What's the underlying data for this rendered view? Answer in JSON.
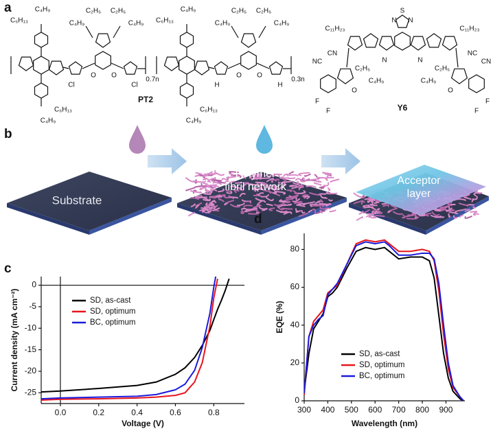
{
  "panel_a": {
    "label": "a",
    "pt2_name": "PT2",
    "y6_name": "Y6",
    "pt2_labels": [
      "C₄H₉",
      "C₆H₁₃",
      "C₂H₅",
      "C₄H₉",
      "C₂H₅",
      "C₄H₉",
      "O",
      "O",
      "Cl",
      "Cl",
      "0.7n",
      "C₆H₁₃",
      "C₄H₉",
      "C₄H₉",
      "C₆H₁₃",
      "C₂H₅",
      "C₄H₉",
      "C₂H₅",
      "C₄H₉",
      "O",
      "O",
      "H",
      "H",
      "0.3n",
      "C₆H₁₃",
      "C₄H₉"
    ],
    "y6_labels": [
      "S",
      "N",
      "N",
      "C₁₁H₂₃",
      "C₁₁H₂₃",
      "NC",
      "CN",
      "NC",
      "CN",
      "N",
      "N",
      "C₂H₅",
      "C₂H₅",
      "C₄H₉",
      "C₄H₉",
      "O",
      "O",
      "F",
      "F",
      "F",
      "F"
    ]
  },
  "panel_b": {
    "label": "b",
    "substrate": "Substrate",
    "polymer": [
      "Polymer",
      "fibril network"
    ],
    "acceptor": [
      "Acceptor",
      "layer"
    ]
  },
  "chart_data": [
    {
      "type": "line",
      "label": "c",
      "xlabel": "Voltage (V)",
      "ylabel": "Current density (mA cm⁻²)",
      "x": [
        -0.1,
        0,
        0.2,
        0.4,
        0.5,
        0.6,
        0.65,
        0.7,
        0.74,
        0.78,
        0.8,
        0.82,
        0.84,
        0.86,
        0.88
      ],
      "series": [
        {
          "name": "SD, as-cast",
          "color": "#000000",
          "values": [
            -24.8,
            -24.6,
            -24.0,
            -23.3,
            -22.5,
            -20.7,
            -19.2,
            -16.8,
            -14.0,
            -10.5,
            -8.0,
            -5.6,
            -3.5,
            -1.2,
            1.5
          ]
        },
        {
          "name": "SD, optimum",
          "color": "#e8141b",
          "values": [
            -26.7,
            -26.5,
            -26.4,
            -26.2,
            -26.0,
            -25.6,
            -25.0,
            -22.5,
            -18.0,
            -9.5,
            -3.0,
            1.5,
            null,
            null,
            null
          ]
        },
        {
          "name": "BC, optimum",
          "color": "#1a1adb",
          "values": [
            -26.4,
            -26.2,
            -26.0,
            -25.8,
            -25.4,
            -24.3,
            -23.0,
            -19.8,
            -14.5,
            -6.5,
            -0.5,
            4.5,
            null,
            null,
            null
          ]
        }
      ],
      "xlim": [
        -0.1,
        0.96
      ],
      "ylim": [
        -27.5,
        2
      ],
      "xticks": [
        {
          "value": 0,
          "label": "0.0"
        },
        0.2,
        0.4,
        0.6,
        0.8
      ],
      "yticks": [
        0,
        -5,
        -10,
        -15,
        -20,
        -25
      ],
      "zero_lines": true,
      "legend": "upper-left"
    },
    {
      "type": "line",
      "label": "d",
      "xlabel": "Wavelength (nm)",
      "ylabel": "EQE (%)",
      "x": [
        300,
        320,
        340,
        360,
        380,
        400,
        420,
        440,
        480,
        520,
        560,
        600,
        640,
        660,
        700,
        750,
        800,
        830,
        850,
        870,
        890,
        910,
        930,
        960,
        975
      ],
      "series": [
        {
          "name": "SD, as-cast",
          "color": "#000000",
          "values": [
            5,
            25,
            38,
            42,
            46,
            55,
            57,
            60,
            70,
            79,
            81,
            80,
            81,
            79,
            75,
            76,
            76,
            74,
            65,
            45,
            25,
            12,
            5,
            1,
            0
          ]
        },
        {
          "name": "SD, optimum",
          "color": "#e8141b",
          "values": [
            3,
            34,
            42,
            45,
            48,
            57,
            59,
            61,
            72,
            83,
            85,
            84,
            85,
            83,
            79,
            79,
            80,
            79,
            74,
            58,
            35,
            17,
            7,
            2,
            0
          ]
        },
        {
          "name": "BC, optimum",
          "color": "#1a1adb",
          "values": [
            4,
            34,
            40,
            43,
            45,
            56,
            59,
            62,
            72,
            82,
            84,
            83,
            84,
            82,
            77,
            77,
            78,
            78,
            75,
            62,
            40,
            20,
            8,
            2,
            0
          ]
        }
      ],
      "xlim": [
        300,
        980
      ],
      "ylim": [
        0,
        88.5
      ],
      "xticks": [
        300,
        400,
        500,
        600,
        700,
        800,
        900
      ],
      "yticks": [
        0,
        20,
        40,
        60,
        80
      ],
      "zero_lines": false,
      "legend": "lower-center"
    }
  ]
}
